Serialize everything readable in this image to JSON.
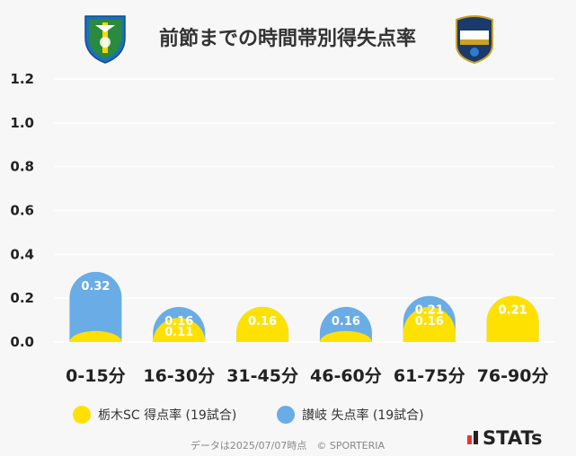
{
  "chart_data": {
    "type": "bar",
    "title": "前節までの時間帯別得失点率",
    "categories": [
      "0-15分",
      "16-30分",
      "31-45分",
      "46-60分",
      "61-75分",
      "76-90分"
    ],
    "ylim": [
      0,
      1.2
    ],
    "yticks": [
      "0.0",
      "0.2",
      "0.4",
      "0.6",
      "0.8",
      "1.0",
      "1.2"
    ],
    "grid": true,
    "legend_position": "bottom",
    "series": [
      {
        "name": "栃木SC 得点率 (19試合)",
        "color": "#ffe100",
        "values": [
          0.05,
          0.11,
          0.16,
          0.05,
          0.16,
          0.21
        ],
        "labels": [
          "",
          "0.11",
          "0.16",
          "",
          "0.16",
          "0.21"
        ]
      },
      {
        "name": "讃岐 失点率 (19試合)",
        "color": "#6aace6",
        "values": [
          0.32,
          0.16,
          0.16,
          0.16,
          0.21,
          0.21
        ],
        "labels": [
          "0.32",
          "0.16",
          "0.16",
          "0.16",
          "0.21",
          "0.21"
        ]
      }
    ]
  },
  "footer": {
    "credit": "データは2025/07/07時点　© SPORTERIA",
    "brand": "STATs"
  },
  "logos": {
    "left": "tochigi-sc-emblem",
    "right": "kamatamare-sanuki-emblem"
  }
}
